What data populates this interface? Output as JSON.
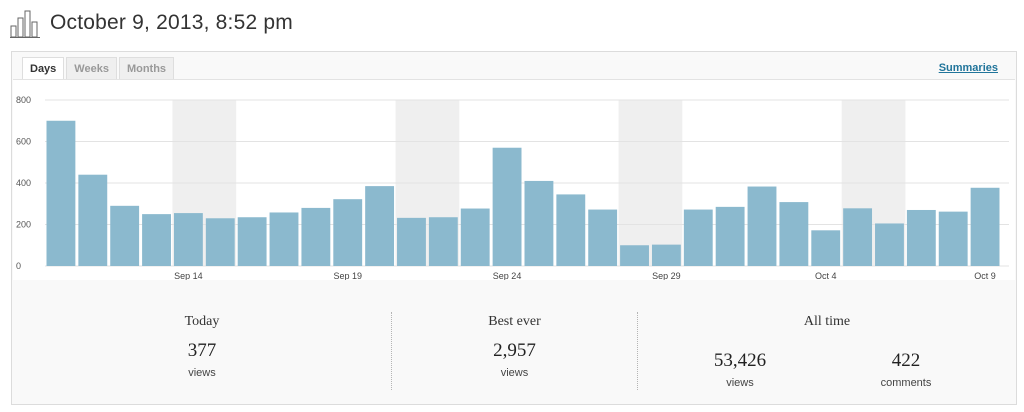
{
  "header": {
    "title": "October 9, 2013, 8:52 pm",
    "icon": "bar-chart-icon"
  },
  "tabs": [
    {
      "label": "Days",
      "active": true
    },
    {
      "label": "Weeks",
      "active": false
    },
    {
      "label": "Months",
      "active": false
    }
  ],
  "summaries_link": "Summaries",
  "colors": {
    "bar": "#8bb9ce",
    "weekend": "#efefef",
    "grid": "#e3e3e3",
    "link": "#21759b"
  },
  "chart_data": {
    "type": "bar",
    "categories": [
      "Sep 10",
      "Sep 11",
      "Sep 12",
      "Sep 13",
      "Sep 14",
      "Sep 15",
      "Sep 16",
      "Sep 17",
      "Sep 18",
      "Sep 19",
      "Sep 20",
      "Sep 21",
      "Sep 22",
      "Sep 23",
      "Sep 24",
      "Sep 25",
      "Sep 26",
      "Sep 27",
      "Sep 28",
      "Sep 29",
      "Sep 30",
      "Oct 1",
      "Oct 2",
      "Oct 3",
      "Oct 4",
      "Oct 5",
      "Oct 6",
      "Oct 7",
      "Oct 8",
      "Oct 9"
    ],
    "values": [
      700,
      440,
      290,
      250,
      255,
      230,
      235,
      258,
      280,
      322,
      385,
      232,
      235,
      277,
      570,
      410,
      345,
      272,
      100,
      103,
      272,
      285,
      383,
      308,
      172,
      278,
      205,
      270,
      262,
      377
    ],
    "weekend_spans": [
      [
        "Sep 14",
        "Sep 15"
      ],
      [
        "Sep 21",
        "Sep 22"
      ],
      [
        "Sep 28",
        "Sep 29"
      ],
      [
        "Oct 5",
        "Oct 6"
      ]
    ],
    "x_tick_labels": [
      "Sep 14",
      "Sep 19",
      "Sep 24",
      "Sep 29",
      "Oct 4",
      "Oct 9"
    ],
    "y_ticks": [
      0,
      200,
      400,
      600,
      800
    ],
    "ylim": [
      0,
      800
    ],
    "grid": true
  },
  "stats": {
    "today": {
      "label": "Today",
      "value": "377",
      "unit": "views"
    },
    "best_ever": {
      "label": "Best ever",
      "value": "2,957",
      "unit": "views"
    },
    "all_time": {
      "label": "All time",
      "views_value": "53,426",
      "views_unit": "views",
      "comments_value": "422",
      "comments_unit": "comments"
    }
  }
}
